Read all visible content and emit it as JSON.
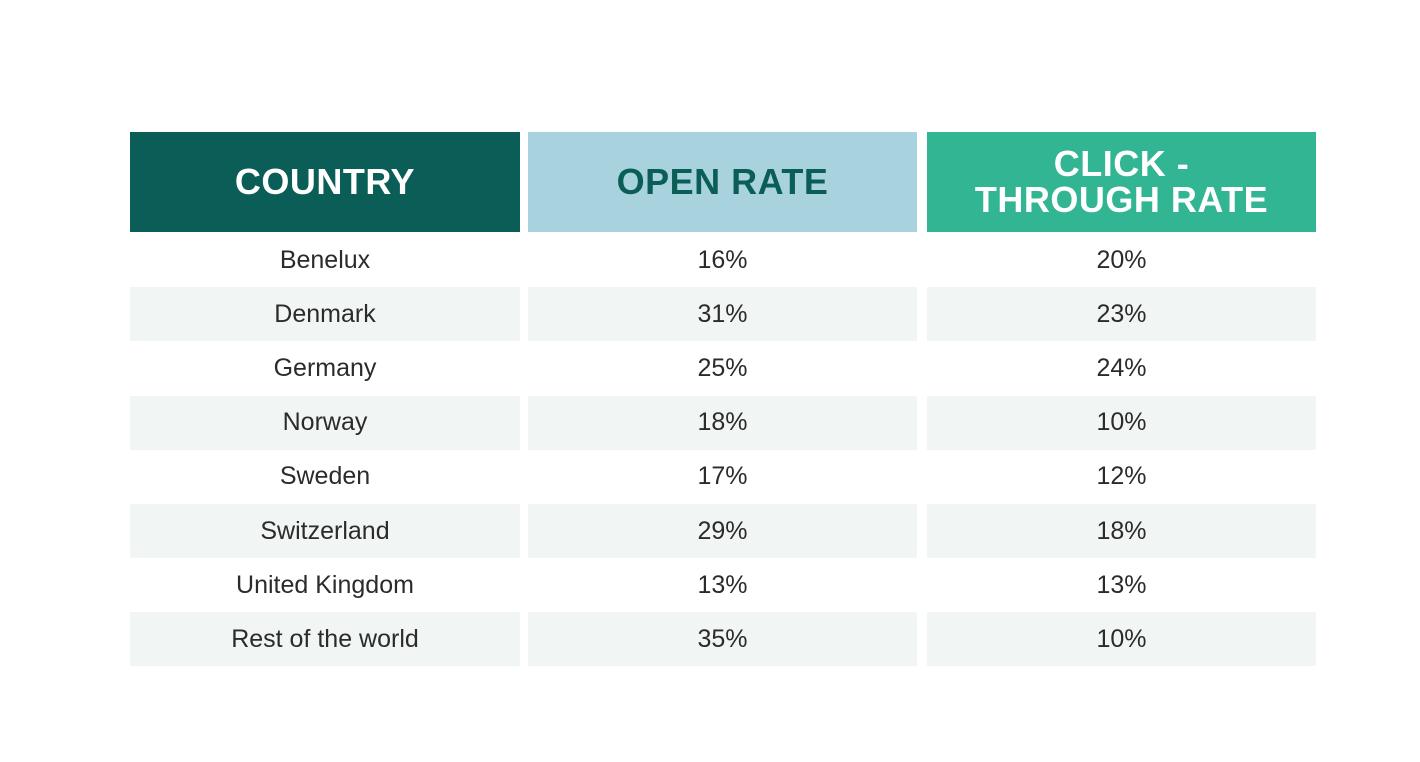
{
  "chart_data": {
    "type": "table",
    "columns": [
      "COUNTRY",
      "OPEN RATE",
      "CLICK - THROUGH RATE"
    ],
    "header_lines": {
      "country": [
        "COUNTRY"
      ],
      "open_rate": [
        "OPEN RATE"
      ],
      "ctr": [
        "CLICK -",
        "THROUGH RATE"
      ]
    },
    "header_colors": {
      "country": {
        "bg": "#0b5e57",
        "fg": "#ffffff"
      },
      "open_rate": {
        "bg": "#a8d3de",
        "fg": "#0b5e57"
      },
      "ctr": {
        "bg": "#32b593",
        "fg": "#ffffff"
      }
    },
    "rows": [
      {
        "country": "Benelux",
        "open_rate": "16%",
        "ctr": "20%"
      },
      {
        "country": "Denmark",
        "open_rate": "31%",
        "ctr": "23%"
      },
      {
        "country": "Germany",
        "open_rate": "25%",
        "ctr": "24%"
      },
      {
        "country": "Norway",
        "open_rate": "18%",
        "ctr": "10%"
      },
      {
        "country": "Sweden",
        "open_rate": "17%",
        "ctr": "12%"
      },
      {
        "country": "Switzerland",
        "open_rate": "29%",
        "ctr": "18%"
      },
      {
        "country": "United Kingdom",
        "open_rate": "13%",
        "ctr": "13%"
      },
      {
        "country": "Rest of the world",
        "open_rate": "35%",
        "ctr": "10%"
      }
    ],
    "row_shading_color": "#f1f5f4"
  }
}
